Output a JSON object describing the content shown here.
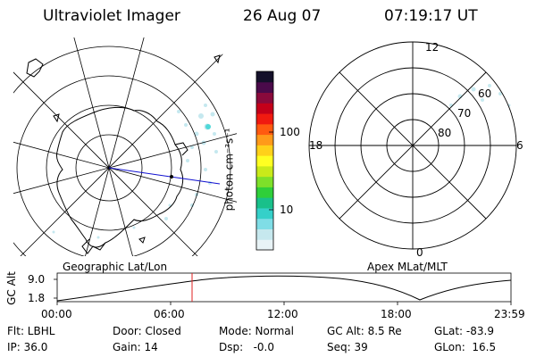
{
  "header": {
    "title": "Ultraviolet Imager",
    "date": "26 Aug 07",
    "time": "07:19:17 UT"
  },
  "left_map": {
    "caption": "Geographic Lat/Lon"
  },
  "right_map": {
    "caption": "Apex MLat/MLT",
    "mlt_labels": {
      "top": "12",
      "left": "18",
      "right": "6",
      "bottom": "0"
    },
    "lat_labels": [
      "60",
      "70",
      "80"
    ]
  },
  "colorbar": {
    "unit_label": "photon cm⁻²s⁻¹",
    "ticks": [
      "100",
      "10"
    ],
    "colors": [
      "#e8f3f6",
      "#c6e8ee",
      "#7fdde6",
      "#35d0c9",
      "#19c08a",
      "#2fcf3a",
      "#7ee02a",
      "#c9ea1a",
      "#ffff22",
      "#ffd11a",
      "#ff9a1a",
      "#ff5a10",
      "#f01a10",
      "#c4001a",
      "#8a0a3c",
      "#4a0a4a",
      "#14102a"
    ]
  },
  "timeline": {
    "ylabel": "GC Alt",
    "yticks": [
      "9.0",
      "1.8"
    ],
    "xticks": [
      "00:00",
      "06:00",
      "12:00",
      "18:00",
      "23:59"
    ],
    "current_marker_color": "#e02020"
  },
  "info": {
    "row1": {
      "flt": "Flt: LBHL",
      "door": "Door: Closed",
      "mode": "Mode: Normal",
      "gcalt": "GC Alt: 8.5 Re",
      "glat": "GLat: -83.9"
    },
    "row2": {
      "ip": "IP: 36.0",
      "gain": "Gain: 14",
      "dsp": "Dsp:   -0.0",
      "seq": "Seq: 39",
      "glon": "GLon:  16.5"
    }
  }
}
